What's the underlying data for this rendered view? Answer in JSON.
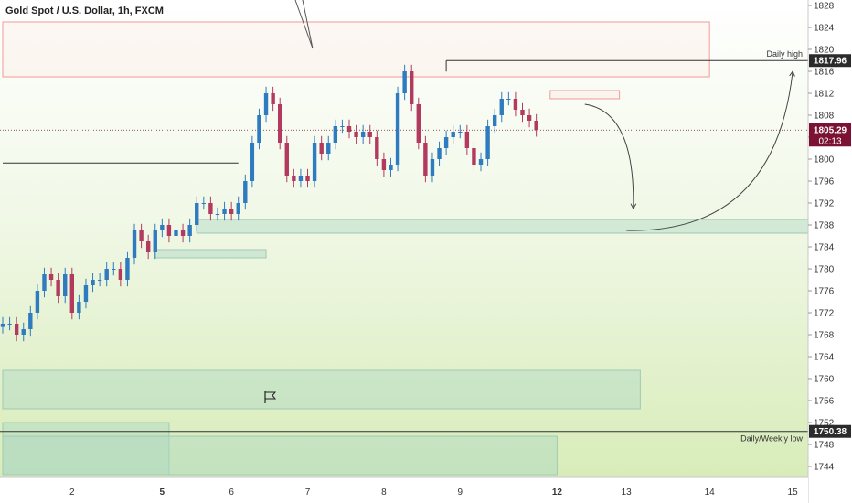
{
  "chart_data": {
    "type": "candlestick",
    "title": "Gold Spot / U.S. Dollar, 1h, FXCM",
    "ylim": [
      1742,
      1829
    ],
    "y_ticks": [
      1744,
      1748,
      1752,
      1756,
      1760,
      1764,
      1768,
      1772,
      1776,
      1780,
      1784,
      1788,
      1792,
      1796,
      1800,
      1804,
      1808,
      1812,
      1816,
      1820,
      1824,
      1828
    ],
    "x_ticks": [
      {
        "label": "2",
        "index": 10
      },
      {
        "label": "5",
        "index": 23,
        "bold": true
      },
      {
        "label": "6",
        "index": 33
      },
      {
        "label": "7",
        "index": 44
      },
      {
        "label": "8",
        "index": 55
      },
      {
        "label": "9",
        "index": 66
      },
      {
        "label": "12",
        "index": 80,
        "bold": true
      },
      {
        "label": "13",
        "index": 90
      },
      {
        "label": "14",
        "index": 102
      },
      {
        "label": "15",
        "index": 114
      }
    ],
    "close_values": [
      1770,
      1770,
      1768,
      1769,
      1772,
      1776,
      1779,
      1778,
      1775,
      1779,
      1772,
      1774,
      1777,
      1778,
      1778,
      1780,
      1780,
      1778,
      1782,
      1787,
      1785,
      1783,
      1787,
      1788,
      1786,
      1787,
      1786,
      1788,
      1792,
      1792,
      1790,
      1790,
      1791,
      1790,
      1792,
      1796,
      1803,
      1808,
      1812,
      1810,
      1803,
      1797,
      1796,
      1797,
      1796,
      1803,
      1801,
      1803,
      1806,
      1806,
      1805,
      1804,
      1805,
      1804,
      1800,
      1798,
      1799,
      1812,
      1816,
      1810,
      1803,
      1797,
      1800,
      1802,
      1804,
      1805,
      1805,
      1802,
      1799,
      1800,
      1806,
      1808,
      1811,
      1811,
      1809,
      1808,
      1807,
      1805.29
    ],
    "current_price": {
      "value": 1805.29,
      "label": "1805.29",
      "countdown": "02:13"
    },
    "levels": [
      {
        "name": "Daily high",
        "value": 1817.96,
        "label": "1817.96"
      },
      {
        "name": "Daily/Weekly low",
        "value": 1750.38,
        "label": "1750.38"
      }
    ],
    "zones": [
      {
        "kind": "supply",
        "y_range": [
          1815,
          1825
        ],
        "x_range": [
          0,
          102
        ]
      },
      {
        "kind": "demand",
        "y_range": [
          1786.5,
          1789
        ],
        "x_range": [
          28,
          118
        ]
      },
      {
        "kind": "demand",
        "y_range": [
          1782,
          1783.5
        ],
        "x_range": [
          22,
          38
        ]
      },
      {
        "kind": "demand",
        "y_range": [
          1754.5,
          1761.5
        ],
        "x_range": [
          0,
          92
        ]
      },
      {
        "kind": "demand",
        "y_range": [
          1742.5,
          1752
        ],
        "x_range": [
          0,
          24
        ]
      },
      {
        "kind": "demand",
        "y_range": [
          1742.5,
          1749.5
        ],
        "x_range": [
          0,
          80
        ]
      },
      {
        "kind": "supply",
        "y_range": [
          1811,
          1812.5
        ],
        "x_range": [
          79,
          89
        ]
      }
    ],
    "horizontal_lines": [
      {
        "value": 1799.3,
        "x_range": [
          0,
          34
        ]
      },
      {
        "value": 1817.96,
        "x_range": [
          64,
          118
        ]
      }
    ],
    "projection": [
      {
        "from": {
          "index": 84,
          "value": 1810
        },
        "to": {
          "index": 91,
          "value": 1791
        }
      },
      {
        "from": {
          "index": 90,
          "value": 1787
        },
        "to": {
          "index": 114,
          "value": 1816
        }
      }
    ]
  }
}
